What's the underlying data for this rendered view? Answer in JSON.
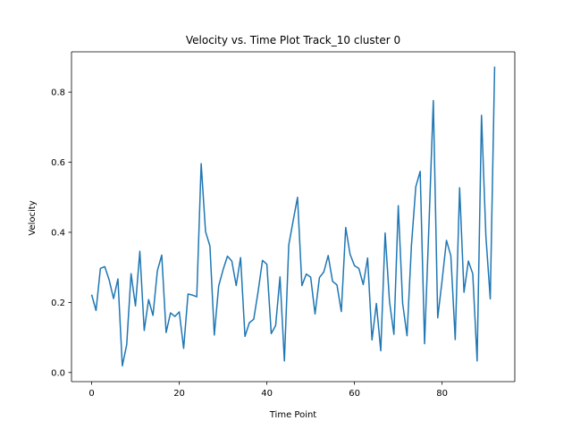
{
  "chart_data": {
    "type": "line",
    "title": "Velocity vs. Time Plot Track_10 cluster 0",
    "xlabel": "Time Point",
    "ylabel": "Velocity",
    "xlim": [
      -4.6,
      96.6
    ],
    "ylim": [
      -0.026,
      0.915
    ],
    "xticks": [
      0,
      20,
      40,
      60,
      80
    ],
    "yticks": [
      0.0,
      0.2,
      0.4,
      0.6,
      0.8
    ],
    "xtick_labels": [
      "0",
      "20",
      "40",
      "60",
      "80"
    ],
    "ytick_labels": [
      "0.0",
      "0.2",
      "0.4",
      "0.6",
      "0.8"
    ],
    "grid": false,
    "series": [
      {
        "color": "#1f77b4",
        "x": [
          0,
          1,
          2,
          3,
          4,
          5,
          6,
          7,
          8,
          9,
          10,
          11,
          12,
          13,
          14,
          15,
          16,
          17,
          18,
          19,
          20,
          21,
          22,
          23,
          24,
          25,
          26,
          27,
          28,
          29,
          30,
          31,
          32,
          33,
          34,
          35,
          36,
          37,
          38,
          39,
          40,
          41,
          42,
          43,
          44,
          45,
          46,
          47,
          48,
          49,
          50,
          51,
          52,
          53,
          54,
          55,
          56,
          57,
          58,
          59,
          60,
          61,
          62,
          63,
          64,
          65,
          66,
          67,
          68,
          69,
          70,
          71,
          72,
          73,
          74,
          75,
          76,
          77,
          78,
          79,
          80,
          81,
          82,
          83,
          84,
          85,
          86,
          87,
          88,
          89,
          90,
          91,
          92
        ],
        "y": [
          0.222,
          0.177,
          0.297,
          0.302,
          0.264,
          0.211,
          0.267,
          0.019,
          0.079,
          0.282,
          0.19,
          0.346,
          0.12,
          0.208,
          0.163,
          0.29,
          0.335,
          0.114,
          0.17,
          0.16,
          0.173,
          0.069,
          0.224,
          0.221,
          0.216,
          0.596,
          0.402,
          0.361,
          0.107,
          0.247,
          0.293,
          0.332,
          0.318,
          0.248,
          0.328,
          0.103,
          0.142,
          0.152,
          0.231,
          0.32,
          0.309,
          0.111,
          0.134,
          0.273,
          0.033,
          0.364,
          0.433,
          0.5,
          0.248,
          0.281,
          0.272,
          0.167,
          0.271,
          0.287,
          0.334,
          0.26,
          0.25,
          0.174,
          0.414,
          0.337,
          0.305,
          0.297,
          0.251,
          0.327,
          0.093,
          0.197,
          0.062,
          0.398,
          0.202,
          0.109,
          0.476,
          0.197,
          0.105,
          0.362,
          0.53,
          0.574,
          0.082,
          0.42,
          0.776,
          0.156,
          0.262,
          0.377,
          0.333,
          0.094,
          0.527,
          0.229,
          0.318,
          0.282,
          0.033,
          0.734,
          0.389,
          0.21,
          0.873
        ]
      }
    ]
  }
}
